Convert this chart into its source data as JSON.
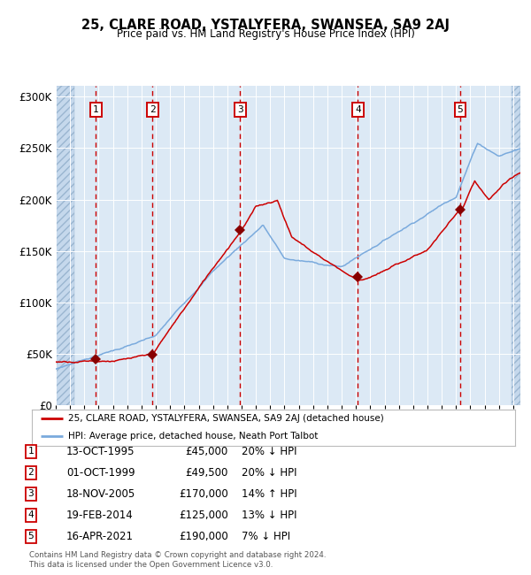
{
  "title": "25, CLARE ROAD, YSTALYFERA, SWANSEA, SA9 2AJ",
  "subtitle": "Price paid vs. HM Land Registry's House Price Index (HPI)",
  "background_color": "#dce9f5",
  "hatch_color": "#c5d8ec",
  "sale_line_color": "#cc0000",
  "hpi_line_color": "#7aaadd",
  "sale_marker_color": "#880000",
  "ylim": [
    0,
    310000
  ],
  "yticks": [
    0,
    50000,
    100000,
    150000,
    200000,
    250000,
    300000
  ],
  "sale_dates_x": [
    1995.79,
    1999.75,
    2005.89,
    2014.13,
    2021.29
  ],
  "sale_prices_y": [
    45000,
    49500,
    170000,
    125000,
    190000
  ],
  "sale_labels": [
    "1",
    "2",
    "3",
    "4",
    "5"
  ],
  "legend_sale_label": "25, CLARE ROAD, YSTALYFERA, SWANSEA, SA9 2AJ (detached house)",
  "legend_hpi_label": "HPI: Average price, detached house, Neath Port Talbot",
  "table_rows": [
    [
      "1",
      "13-OCT-1995",
      "£45,000",
      "20% ↓ HPI"
    ],
    [
      "2",
      "01-OCT-1999",
      "£49,500",
      "20% ↓ HPI"
    ],
    [
      "3",
      "18-NOV-2005",
      "£170,000",
      "14% ↑ HPI"
    ],
    [
      "4",
      "19-FEB-2014",
      "£125,000",
      "13% ↓ HPI"
    ],
    [
      "5",
      "16-APR-2021",
      "£190,000",
      "7% ↓ HPI"
    ]
  ],
  "footer": "Contains HM Land Registry data © Crown copyright and database right 2024.\nThis data is licensed under the Open Government Licence v3.0.",
  "xmin": 1993.0,
  "xmax": 2025.5,
  "hatch_left_end": 1994.3,
  "hatch_right_start": 2024.9
}
